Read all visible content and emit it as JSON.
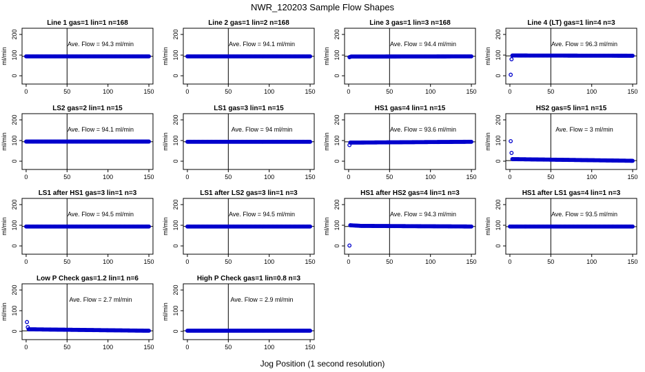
{
  "figure": {
    "title": "NWR_120203  Sample Flow Shapes",
    "xlabel": "Jog Position (1 second resolution)",
    "point_color": "#0000CC",
    "ylabel": "ml/min",
    "xticks": [
      0,
      50,
      100,
      150
    ],
    "yticks": [
      0,
      100,
      200
    ],
    "xlim": [
      -5,
      155
    ],
    "ylim": [
      -40,
      230
    ],
    "vline_x": 50
  },
  "chart_data": [
    {
      "type": "scatter",
      "title": "Line 1 gas=1 lin=1 n=168",
      "annotation": "Ave. Flow = 94.3  ml/min",
      "ave_flow": 94.3,
      "points": [
        [
          0,
          94
        ],
        [
          150,
          94
        ]
      ]
    },
    {
      "type": "scatter",
      "title": "Line 2 gas=1 lin=2 n=168",
      "annotation": "Ave. Flow = 94.1  ml/min",
      "ave_flow": 94.1,
      "points": [
        [
          0,
          94
        ],
        [
          150,
          94
        ]
      ]
    },
    {
      "type": "scatter",
      "title": "Line 3 gas=1 lin=3 n=168",
      "annotation": "Ave. Flow = 94.4  ml/min",
      "ave_flow": 94.4,
      "points": [
        [
          1,
          90
        ],
        [
          3,
          93
        ],
        [
          150,
          94
        ]
      ]
    },
    {
      "type": "scatter",
      "title": "Line 4 (LT) gas=1 lin=4 n=3",
      "annotation": "Ave. Flow = 96.3  ml/min",
      "ave_flow": 96.3,
      "points": [
        [
          1,
          5
        ],
        [
          2,
          80
        ],
        [
          3,
          98
        ],
        [
          150,
          97
        ]
      ]
    },
    {
      "type": "scatter",
      "title": "LS2 gas=2 lin=1 n=15",
      "annotation": "Ave. Flow = 94.1  ml/min",
      "ave_flow": 94.1,
      "points": [
        [
          0,
          95
        ],
        [
          150,
          95
        ]
      ]
    },
    {
      "type": "scatter",
      "title": "LS1 gas=3 lin=1 n=15",
      "annotation": "Ave. Flow = 94  ml/min",
      "ave_flow": 94,
      "points": [
        [
          0,
          94
        ],
        [
          150,
          94
        ]
      ]
    },
    {
      "type": "scatter",
      "title": "HS1 gas=4 lin=1 n=15",
      "annotation": "Ave. Flow = 93.6  ml/min",
      "ave_flow": 93.6,
      "points": [
        [
          1,
          78
        ],
        [
          2,
          90
        ],
        [
          150,
          94
        ]
      ]
    },
    {
      "type": "scatter",
      "title": "HS2 gas=5 lin=1 n=15",
      "annotation": "Ave. Flow = 3  ml/min",
      "ave_flow": 3,
      "points": [
        [
          1,
          97
        ],
        [
          2,
          40
        ],
        [
          3,
          10
        ],
        [
          150,
          2
        ]
      ]
    },
    {
      "type": "scatter",
      "title": "LS1 after HS1 gas=3 lin=1 n=3",
      "annotation": "Ave. Flow = 94.5  ml/min",
      "ave_flow": 94.5,
      "points": [
        [
          0,
          94
        ],
        [
          150,
          94
        ]
      ]
    },
    {
      "type": "scatter",
      "title": "LS1 after LS2 gas=3 lin=1 n=3",
      "annotation": "Ave. Flow = 94.5  ml/min",
      "ave_flow": 94.5,
      "points": [
        [
          0,
          94
        ],
        [
          150,
          94
        ]
      ]
    },
    {
      "type": "scatter",
      "title": "HS1 after HS2 gas=4 lin=1 n=3",
      "annotation": "Ave. Flow = 94.3  ml/min",
      "ave_flow": 94.3,
      "points": [
        [
          1,
          2
        ],
        [
          2,
          100
        ],
        [
          15,
          97
        ],
        [
          150,
          94
        ]
      ]
    },
    {
      "type": "scatter",
      "title": "HS1 after LS1 gas=4 lin=1 n=3",
      "annotation": "Ave. Flow = 93.5  ml/min",
      "ave_flow": 93.5,
      "points": [
        [
          0,
          94
        ],
        [
          150,
          94
        ]
      ]
    },
    {
      "type": "scatter",
      "title": "Low P Check gas=1.2 lin=1 n=6",
      "annotation": "Ave. Flow = 2.7  ml/min",
      "ave_flow": 2.7,
      "points": [
        [
          1,
          45
        ],
        [
          2,
          20
        ],
        [
          3,
          10
        ],
        [
          150,
          3
        ]
      ]
    },
    {
      "type": "scatter",
      "title": "High P Check gas=1 lin=0.8 n=3",
      "annotation": "Ave. Flow = 2.9  ml/min",
      "ave_flow": 2.9,
      "points": [
        [
          0,
          3
        ],
        [
          150,
          3
        ]
      ]
    }
  ]
}
